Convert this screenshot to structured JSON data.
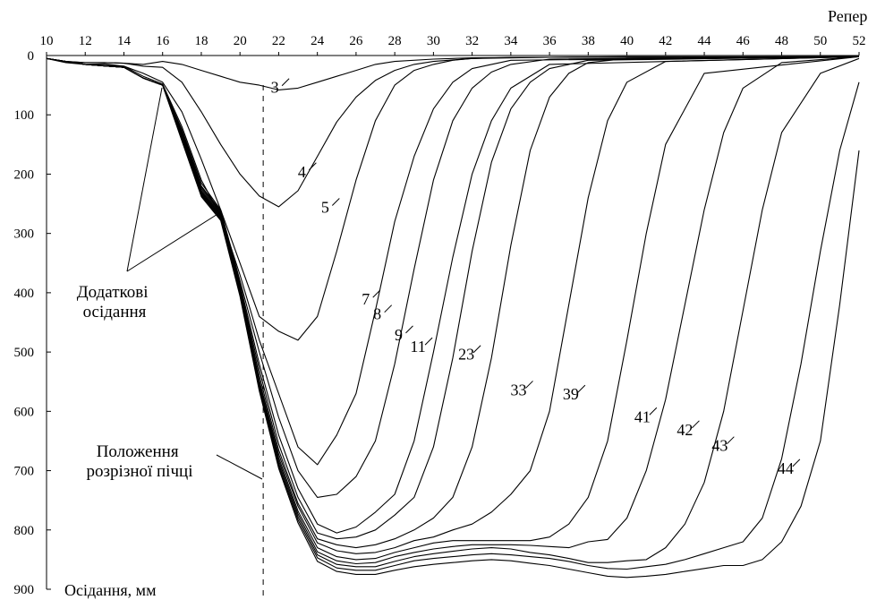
{
  "chart_data": {
    "type": "line",
    "x_axis_title": "Репер",
    "y_axis_title": "Осідання, мм",
    "xlim": [
      10,
      52
    ],
    "ylim": [
      0,
      900
    ],
    "x_ticks": [
      10,
      12,
      14,
      16,
      18,
      20,
      22,
      24,
      26,
      28,
      30,
      32,
      34,
      36,
      38,
      40,
      42,
      44,
      46,
      48,
      50,
      52
    ],
    "y_ticks": [
      0,
      100,
      200,
      300,
      400,
      500,
      600,
      700,
      800,
      900
    ],
    "cut_position": 21.2,
    "annotations": [
      {
        "text": "Додаткові осідання"
      },
      {
        "text": "Положення розрізної пічці"
      }
    ],
    "series": [
      {
        "name": "3",
        "x": [
          10,
          11,
          12,
          13,
          14,
          15,
          16,
          17,
          18,
          19,
          20,
          21,
          22,
          23,
          24,
          25,
          26,
          27,
          28,
          30,
          32,
          36,
          40,
          44,
          48,
          52
        ],
        "y": [
          5,
          10,
          12,
          12,
          13,
          15,
          10,
          15,
          25,
          35,
          45,
          50,
          58,
          55,
          45,
          35,
          25,
          15,
          10,
          6,
          4,
          3,
          2,
          2,
          2,
          2
        ]
      },
      {
        "name": "4",
        "x": [
          10,
          11,
          12,
          13,
          14,
          15,
          16,
          17,
          18,
          19,
          20,
          21,
          22,
          23,
          24,
          25,
          26,
          27,
          28,
          29,
          30,
          32,
          36,
          52
        ],
        "y": [
          5,
          10,
          12,
          12,
          13,
          18,
          20,
          45,
          95,
          150,
          200,
          237,
          255,
          228,
          170,
          112,
          70,
          42,
          25,
          15,
          10,
          5,
          3,
          2
        ]
      },
      {
        "name": "5",
        "x": [
          10,
          11,
          12,
          13,
          14,
          15,
          16,
          17,
          18,
          19,
          20,
          21,
          22,
          23,
          24,
          25,
          26,
          27,
          28,
          29,
          30,
          31,
          32,
          34,
          52
        ],
        "y": [
          5,
          12,
          15,
          14,
          18,
          30,
          45,
          95,
          175,
          260,
          350,
          440,
          465,
          480,
          440,
          330,
          210,
          110,
          50,
          25,
          15,
          8,
          5,
          3,
          2
        ]
      },
      {
        "name": "7",
        "x": [
          10,
          12,
          14,
          15,
          16,
          17,
          18,
          19,
          20,
          21,
          22,
          23,
          24,
          25,
          26,
          27,
          28,
          29,
          30,
          31,
          32,
          34,
          52
        ],
        "y": [
          5,
          15,
          18,
          35,
          48,
          120,
          210,
          270,
          370,
          480,
          570,
          660,
          690,
          640,
          570,
          430,
          280,
          170,
          90,
          45,
          22,
          8,
          2
        ]
      },
      {
        "name": "8",
        "x": [
          10,
          12,
          14,
          15,
          16,
          17,
          18,
          19,
          20,
          21,
          22,
          23,
          24,
          25,
          26,
          27,
          28,
          29,
          30,
          31,
          32,
          33,
          34,
          36,
          52
        ],
        "y": [
          5,
          15,
          20,
          38,
          50,
          125,
          215,
          260,
          380,
          500,
          610,
          700,
          745,
          740,
          710,
          650,
          520,
          360,
          210,
          110,
          55,
          28,
          15,
          6,
          2
        ]
      },
      {
        "name": "9",
        "x": [
          10,
          12,
          14,
          15,
          16,
          17,
          18,
          19,
          20,
          21,
          22,
          23,
          24,
          25,
          26,
          27,
          28,
          29,
          30,
          31,
          32,
          33,
          34,
          36,
          52
        ],
        "y": [
          5,
          15,
          20,
          38,
          50,
          128,
          220,
          262,
          385,
          520,
          640,
          730,
          790,
          805,
          795,
          770,
          740,
          650,
          500,
          340,
          200,
          110,
          55,
          15,
          2
        ]
      },
      {
        "name": "11",
        "x": [
          10,
          12,
          14,
          15,
          16,
          17,
          18,
          19,
          20,
          21,
          22,
          23,
          24,
          25,
          26,
          27,
          28,
          29,
          30,
          31,
          32,
          33,
          34,
          35,
          36,
          38,
          52
        ],
        "y": [
          5,
          15,
          20,
          38,
          50,
          130,
          222,
          264,
          390,
          530,
          655,
          745,
          805,
          815,
          812,
          800,
          775,
          745,
          660,
          510,
          330,
          180,
          90,
          45,
          22,
          8,
          2
        ]
      },
      {
        "name": "23",
        "x": [
          10,
          12,
          14,
          15,
          16,
          17,
          18,
          19,
          20,
          21,
          22,
          23,
          24,
          25,
          26,
          27,
          28,
          29,
          30,
          31,
          32,
          33,
          34,
          35,
          36,
          37,
          38,
          40,
          52
        ],
        "y": [
          5,
          15,
          20,
          38,
          50,
          132,
          225,
          266,
          392,
          540,
          665,
          755,
          815,
          825,
          830,
          825,
          815,
          800,
          780,
          745,
          660,
          510,
          320,
          160,
          70,
          30,
          12,
          5,
          2
        ]
      },
      {
        "name": "33",
        "x": [
          10,
          12,
          14,
          15,
          16,
          17,
          18,
          19,
          20,
          21,
          22,
          23,
          24,
          25,
          26,
          27,
          28,
          29,
          30,
          31,
          32,
          33,
          34,
          35,
          36,
          37,
          38,
          39,
          40,
          42,
          52
        ],
        "y": [
          5,
          15,
          20,
          38,
          50,
          134,
          228,
          268,
          395,
          548,
          672,
          760,
          822,
          835,
          840,
          838,
          830,
          818,
          812,
          800,
          790,
          770,
          740,
          700,
          600,
          420,
          240,
          110,
          45,
          10,
          2
        ]
      },
      {
        "name": "39",
        "x": [
          10,
          12,
          14,
          15,
          16,
          17,
          18,
          19,
          20,
          21,
          22,
          23,
          24,
          25,
          26,
          27,
          28,
          29,
          30,
          31,
          32,
          33,
          34,
          35,
          36,
          37,
          38,
          39,
          40,
          41,
          42,
          44,
          52
        ],
        "y": [
          5,
          15,
          20,
          38,
          50,
          136,
          230,
          270,
          398,
          553,
          678,
          768,
          830,
          845,
          850,
          848,
          838,
          830,
          822,
          818,
          818,
          818,
          818,
          818,
          812,
          790,
          745,
          650,
          480,
          300,
          150,
          30,
          2
        ]
      },
      {
        "name": "41",
        "x": [
          10,
          12,
          14,
          15,
          16,
          17,
          18,
          19,
          20,
          21,
          22,
          23,
          24,
          25,
          26,
          27,
          28,
          29,
          30,
          31,
          32,
          33,
          34,
          35,
          36,
          37,
          38,
          39,
          40,
          41,
          42,
          43,
          44,
          45,
          46,
          48,
          52
        ],
        "y": [
          5,
          15,
          20,
          38,
          50,
          138,
          232,
          272,
          400,
          557,
          683,
          773,
          837,
          852,
          857,
          855,
          845,
          838,
          832,
          828,
          825,
          825,
          825,
          826,
          828,
          830,
          820,
          816,
          780,
          700,
          580,
          420,
          260,
          130,
          55,
          12,
          2
        ]
      },
      {
        "name": "42",
        "x": [
          10,
          12,
          14,
          15,
          16,
          17,
          18,
          19,
          20,
          21,
          22,
          23,
          24,
          25,
          26,
          27,
          28,
          29,
          30,
          31,
          32,
          33,
          34,
          35,
          36,
          37,
          38,
          39,
          40,
          41,
          42,
          43,
          44,
          45,
          46,
          47,
          48,
          50,
          52
        ],
        "y": [
          5,
          15,
          20,
          38,
          50,
          140,
          234,
          274,
          402,
          560,
          688,
          778,
          842,
          858,
          862,
          862,
          853,
          845,
          840,
          836,
          832,
          830,
          832,
          838,
          842,
          848,
          855,
          855,
          852,
          850,
          830,
          790,
          720,
          600,
          430,
          260,
          130,
          30,
          5
        ]
      },
      {
        "name": "43",
        "x": [
          10,
          12,
          14,
          15,
          16,
          17,
          18,
          19,
          20,
          21,
          22,
          23,
          24,
          25,
          26,
          27,
          28,
          29,
          30,
          31,
          32,
          33,
          34,
          35,
          36,
          37,
          38,
          39,
          40,
          41,
          42,
          43,
          44,
          45,
          46,
          47,
          48,
          49,
          50,
          51,
          52
        ],
        "y": [
          5,
          15,
          20,
          38,
          50,
          142,
          236,
          276,
          404,
          563,
          692,
          783,
          847,
          864,
          868,
          868,
          860,
          852,
          848,
          845,
          842,
          840,
          842,
          845,
          848,
          853,
          860,
          865,
          866,
          862,
          858,
          850,
          840,
          830,
          820,
          780,
          680,
          520,
          330,
          160,
          45
        ]
      },
      {
        "name": "44",
        "x": [
          10,
          12,
          14,
          15,
          16,
          17,
          18,
          19,
          20,
          21,
          22,
          23,
          24,
          25,
          26,
          27,
          28,
          29,
          30,
          31,
          32,
          33,
          34,
          35,
          36,
          37,
          38,
          39,
          40,
          41,
          42,
          43,
          44,
          45,
          46,
          47,
          48,
          49,
          50,
          51,
          52
        ],
        "y": [
          5,
          15,
          20,
          38,
          50,
          144,
          238,
          278,
          406,
          566,
          696,
          788,
          853,
          870,
          875,
          875,
          868,
          862,
          858,
          855,
          852,
          850,
          852,
          856,
          860,
          866,
          872,
          878,
          880,
          878,
          875,
          870,
          865,
          860,
          860,
          850,
          820,
          760,
          650,
          420,
          160
        ]
      }
    ],
    "label_positions": [
      {
        "name": "3",
        "at": [
          21.8,
          63
        ]
      },
      {
        "name": "4",
        "at": [
          23.2,
          205
        ]
      },
      {
        "name": "5",
        "at": [
          24.4,
          265
        ]
      },
      {
        "name": "7",
        "at": [
          26.5,
          420
        ]
      },
      {
        "name": "8",
        "at": [
          27.1,
          445
        ]
      },
      {
        "name": "9",
        "at": [
          28.2,
          480
        ]
      },
      {
        "name": "11",
        "at": [
          29.2,
          500
        ]
      },
      {
        "name": "23",
        "at": [
          31.7,
          513
        ]
      },
      {
        "name": "33",
        "at": [
          34.4,
          573
        ]
      },
      {
        "name": "39",
        "at": [
          37.1,
          580
        ]
      },
      {
        "name": "41",
        "at": [
          40.8,
          618
        ]
      },
      {
        "name": "42",
        "at": [
          43.0,
          640
        ]
      },
      {
        "name": "43",
        "at": [
          44.8,
          667
        ]
      },
      {
        "name": "44",
        "at": [
          48.2,
          705
        ]
      }
    ]
  }
}
